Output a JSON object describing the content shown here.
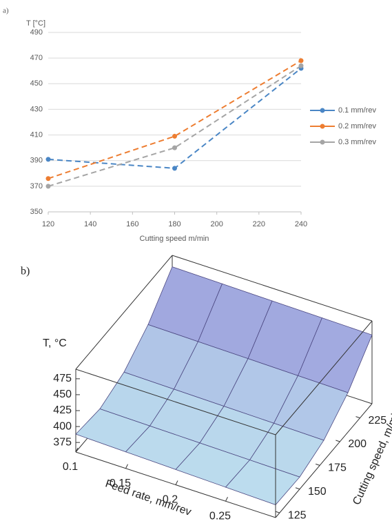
{
  "chart_data": [
    {
      "type": "line",
      "panel_label": "a)",
      "ylabel": "T [°C]",
      "xlabel": "Cutting speed m/min",
      "x": [
        120,
        180,
        240
      ],
      "series": [
        {
          "name": "0.1 mm/rev",
          "color": "#4a86c5",
          "values": [
            391,
            384,
            462
          ]
        },
        {
          "name": "0.2 mm/rev",
          "color": "#ed7d31",
          "values": [
            376,
            409,
            468
          ]
        },
        {
          "name": "0.3 mm/rev",
          "color": "#a5a5a5",
          "values": [
            370,
            400,
            464
          ]
        }
      ],
      "xlim": [
        120,
        240
      ],
      "xticks": [
        120,
        140,
        160,
        180,
        200,
        220,
        240
      ],
      "ylim": [
        350,
        490
      ],
      "yticks": [
        350,
        370,
        390,
        410,
        430,
        450,
        470,
        490
      ],
      "grid": true,
      "legend": "right",
      "dashed": true
    },
    {
      "type": "surface",
      "panel_label": "b)",
      "zlabel": "T, °C",
      "xlabel": "Feed rate, mm/rev",
      "ylabel": "Cutting speed, m/min",
      "x": [
        0.1,
        0.15,
        0.2,
        0.25,
        0.3
      ],
      "y": [
        120,
        150,
        180,
        210,
        240
      ],
      "z": [
        [
          388,
          383,
          396,
          426,
          472
        ],
        [
          386,
          382,
          395,
          425,
          471
        ],
        [
          384,
          381,
          394,
          424,
          470
        ],
        [
          382,
          380,
          393,
          423,
          469
        ],
        [
          380,
          379,
          392,
          422,
          468
        ]
      ],
      "xlim": [
        0.1,
        0.3
      ],
      "xticks": [
        0.1,
        0.15,
        0.2,
        0.25
      ],
      "ylim": [
        120,
        240
      ],
      "yticks": [
        125,
        150,
        175,
        200,
        225
      ],
      "zlim": [
        360,
        490
      ],
      "zticks": [
        375,
        400,
        425,
        450,
        475
      ],
      "color_low": "#c4ecf2",
      "color_high": "#9088d6"
    }
  ]
}
